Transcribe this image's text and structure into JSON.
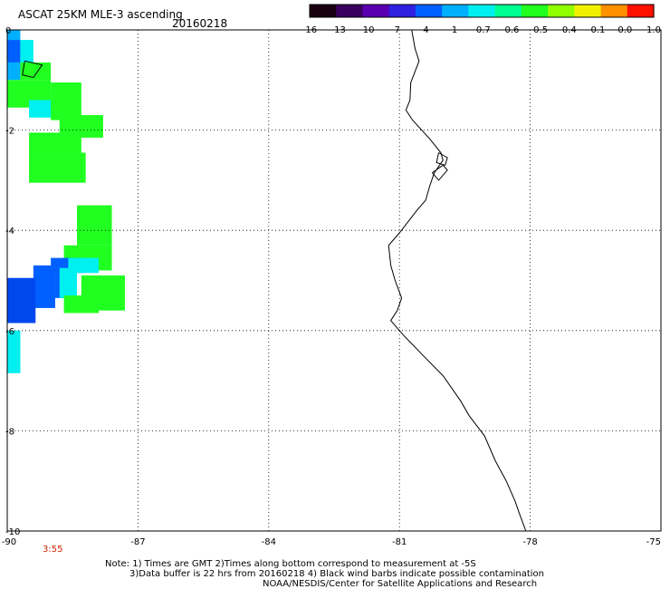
{
  "header": {
    "title": "ASCAT 25KM MLE-3 ascending",
    "date": "20160218"
  },
  "colorbar": {
    "labels": [
      "-16",
      "-13",
      "-10",
      "-7",
      "-4",
      "-1",
      "-0.7",
      "-0.6",
      "-0.5",
      "-0.4",
      "-0.1",
      "0.0",
      "1.0"
    ],
    "colors": [
      "#1a0010",
      "#3a0060",
      "#5a00b0",
      "#3020e0",
      "#0060ff",
      "#00b0ff",
      "#00f0f0",
      "#00ff90",
      "#20ff20",
      "#90ff00",
      "#f0f000",
      "#ff9000",
      "#ff1000"
    ]
  },
  "map": {
    "lat_labels": [
      "0",
      "-2",
      "-4",
      "-6",
      "-8",
      "-10"
    ],
    "lon_labels": [
      "-90",
      "-87",
      "-84",
      "-81",
      "-78",
      "-75"
    ],
    "lat_range": [
      -10,
      0
    ],
    "lon_range": [
      -90,
      -75
    ],
    "grid": "dotted",
    "time_label": "3:55",
    "data_cells": [
      {
        "lon": -90.0,
        "lat": -0.0,
        "w": 0.3,
        "h": 0.2,
        "color": "#00b0ff"
      },
      {
        "lon": -90.0,
        "lat": -0.2,
        "w": 0.3,
        "h": 0.45,
        "color": "#0060ff"
      },
      {
        "lon": -89.7,
        "lat": -0.2,
        "w": 0.3,
        "h": 0.45,
        "color": "#00f0f0"
      },
      {
        "lon": -90.0,
        "lat": -0.65,
        "w": 0.3,
        "h": 0.35,
        "color": "#00b0ff"
      },
      {
        "lon": -89.7,
        "lat": -0.65,
        "w": 0.7,
        "h": 0.35,
        "color": "#20ff20"
      },
      {
        "lon": -90.0,
        "lat": -1.0,
        "w": 1.0,
        "h": 0.55,
        "color": "#20ff20"
      },
      {
        "lon": -89.5,
        "lat": -1.4,
        "w": 0.8,
        "h": 0.35,
        "color": "#00f0f0"
      },
      {
        "lon": -89.0,
        "lat": -1.05,
        "w": 0.7,
        "h": 0.75,
        "color": "#20ff20"
      },
      {
        "lon": -88.8,
        "lat": -1.7,
        "w": 1.0,
        "h": 0.45,
        "color": "#20ff20"
      },
      {
        "lon": -89.5,
        "lat": -2.05,
        "w": 1.2,
        "h": 0.4,
        "color": "#20ff20"
      },
      {
        "lon": -89.5,
        "lat": -2.45,
        "w": 1.3,
        "h": 0.6,
        "color": "#20ff20"
      },
      {
        "lon": -88.4,
        "lat": -3.5,
        "w": 0.8,
        "h": 0.8,
        "color": "#20ff20"
      },
      {
        "lon": -88.7,
        "lat": -4.3,
        "w": 1.1,
        "h": 0.5,
        "color": "#20ff20"
      },
      {
        "lon": -89.0,
        "lat": -4.55,
        "w": 0.8,
        "h": 0.3,
        "color": "#0060ff"
      },
      {
        "lon": -88.6,
        "lat": -4.55,
        "w": 0.7,
        "h": 0.3,
        "color": "#00f0f0"
      },
      {
        "lon": -89.4,
        "lat": -4.7,
        "w": 0.5,
        "h": 0.85,
        "color": "#0060ff"
      },
      {
        "lon": -88.9,
        "lat": -4.75,
        "w": 0.3,
        "h": 0.6,
        "color": "#0060ff"
      },
      {
        "lon": -88.8,
        "lat": -4.75,
        "w": 0.4,
        "h": 0.6,
        "color": "#00f0f0"
      },
      {
        "lon": -88.3,
        "lat": -4.9,
        "w": 1.0,
        "h": 0.7,
        "color": "#20ff20"
      },
      {
        "lon": -88.7,
        "lat": -5.3,
        "w": 0.8,
        "h": 0.35,
        "color": "#20ff20"
      },
      {
        "lon": -90.0,
        "lat": -4.95,
        "w": 0.65,
        "h": 0.9,
        "color": "#0048ee"
      },
      {
        "lon": -90.0,
        "lat": -6.0,
        "w": 0.3,
        "h": 0.85,
        "color": "#00f0f0"
      }
    ],
    "coastline": [
      [
        -80.72,
        0.0
      ],
      [
        -80.64,
        -0.38
      ],
      [
        -80.55,
        -0.62
      ],
      [
        -80.74,
        -1.05
      ],
      [
        -80.76,
        -1.4
      ],
      [
        -80.85,
        -1.6
      ],
      [
        -80.7,
        -1.8
      ],
      [
        -80.3,
        -2.18
      ],
      [
        -80.05,
        -2.45
      ],
      [
        -80.0,
        -2.6
      ],
      [
        -80.2,
        -2.85
      ],
      [
        -80.3,
        -3.1
      ],
      [
        -80.4,
        -3.4
      ],
      [
        -80.6,
        -3.6
      ],
      [
        -81.0,
        -4.05
      ],
      [
        -81.25,
        -4.3
      ],
      [
        -81.2,
        -4.7
      ],
      [
        -81.1,
        -5.0
      ],
      [
        -80.95,
        -5.35
      ],
      [
        -81.05,
        -5.6
      ],
      [
        -81.2,
        -5.8
      ],
      [
        -80.9,
        -6.1
      ],
      [
        -80.4,
        -6.55
      ],
      [
        -80.0,
        -6.9
      ],
      [
        -79.6,
        -7.4
      ],
      [
        -79.4,
        -7.7
      ],
      [
        -79.05,
        -8.1
      ],
      [
        -78.8,
        -8.6
      ],
      [
        -78.55,
        -9.0
      ],
      [
        -78.35,
        -9.4
      ],
      [
        -78.25,
        -9.65
      ],
      [
        -78.1,
        -10.0
      ]
    ],
    "gulf_islands": [
      [
        [
          -80.1,
          -2.45
        ],
        [
          -79.9,
          -2.55
        ],
        [
          -79.95,
          -2.7
        ],
        [
          -80.15,
          -2.65
        ],
        [
          -80.1,
          -2.45
        ]
      ],
      [
        [
          -80.25,
          -2.85
        ],
        [
          -80.0,
          -2.7
        ],
        [
          -79.9,
          -2.8
        ],
        [
          -80.1,
          -3.0
        ],
        [
          -80.25,
          -2.85
        ]
      ]
    ],
    "galapagos": [
      [
        [
          -89.6,
          -0.62
        ],
        [
          -89.2,
          -0.7
        ],
        [
          -89.4,
          -0.95
        ],
        [
          -89.65,
          -0.9
        ],
        [
          -89.6,
          -0.62
        ]
      ]
    ]
  },
  "notes": {
    "line1": "Note: 1) Times are GMT 2)Times along bottom correspond to measurement at -5S",
    "line2": "3)Data buffer is 22 hrs from 20160218 4) Black wind barbs indicate possible contamination",
    "line3": "NOAA/NESDIS/Center for Satellite Applications and Research"
  }
}
